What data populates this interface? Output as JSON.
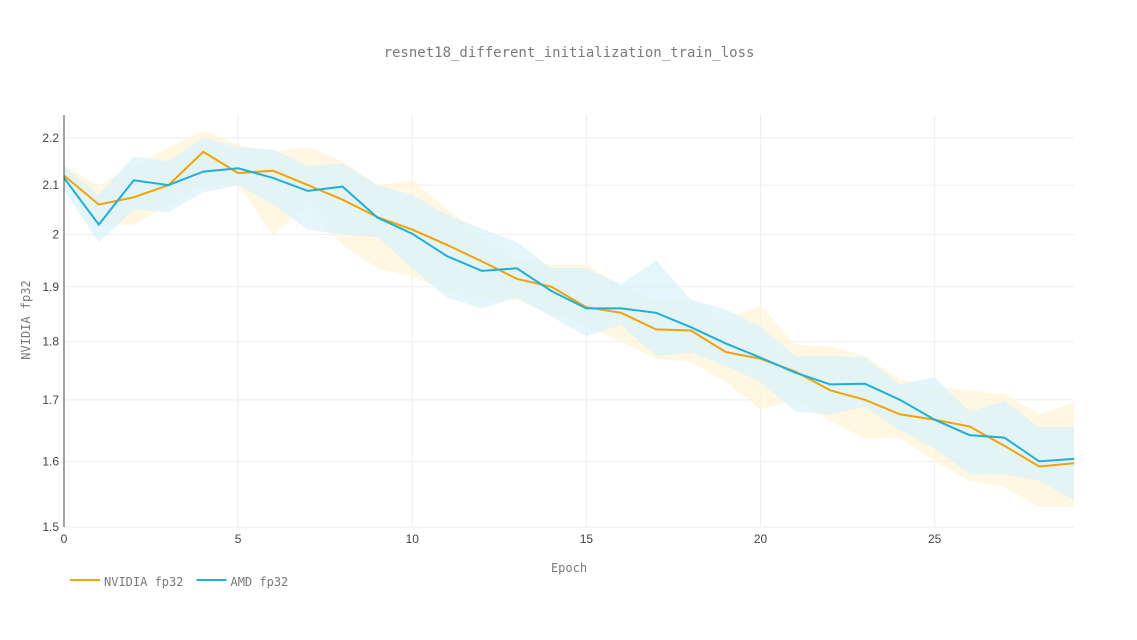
{
  "chart_data": {
    "type": "line",
    "title": "resnet18_different_initialization_train_loss",
    "xlabel": "Epoch",
    "ylabel": "NVIDIA fp32",
    "xlim": [
      0,
      29
    ],
    "ylim": [
      1.5,
      2.25
    ],
    "y_scale": "log",
    "x_ticks": [
      0,
      5,
      10,
      15,
      20,
      25
    ],
    "y_ticks": [
      1.5,
      1.6,
      1.7,
      1.8,
      1.9,
      2,
      2.1,
      2.2
    ],
    "y_tick_labels": [
      "1.5",
      "1.6",
      "1.7",
      "1.8",
      "1.9",
      "2",
      "2.1",
      "2.2"
    ],
    "x_tick_labels": [
      "0",
      "5",
      "10",
      "15",
      "20",
      "25"
    ],
    "grid": true,
    "legend_position": "bottom-left",
    "x": [
      0,
      1,
      2,
      3,
      4,
      5,
      6,
      7,
      8,
      9,
      10,
      11,
      12,
      13,
      14,
      15,
      16,
      17,
      18,
      19,
      20,
      21,
      22,
      23,
      24,
      25,
      26,
      27,
      28,
      29
    ],
    "series": [
      {
        "name": "NVIDIA fp32",
        "color": "#f0a30a",
        "band_color": "#fff3d6",
        "values": [
          2.12,
          2.06,
          2.075,
          2.1,
          2.17,
          2.125,
          2.13,
          2.1,
          2.07,
          2.035,
          2.01,
          1.98,
          1.948,
          1.915,
          1.9,
          1.862,
          1.852,
          1.822,
          1.82,
          1.782,
          1.77,
          1.748,
          1.716,
          1.7,
          1.676,
          1.667,
          1.656,
          1.625,
          1.592,
          1.597
        ],
        "upper": [
          2.14,
          2.1,
          2.14,
          2.18,
          2.215,
          2.185,
          2.17,
          2.18,
          2.15,
          2.1,
          2.11,
          2.05,
          2.0,
          1.95,
          1.942,
          1.942,
          1.9,
          1.875,
          1.878,
          1.84,
          1.865,
          1.795,
          1.792,
          1.775,
          1.735,
          1.722,
          1.716,
          1.71,
          1.676,
          1.695
        ],
        "lower": [
          2.1,
          2.02,
          2.02,
          2.06,
          2.1,
          2.1,
          2.0,
          2.06,
          1.98,
          1.935,
          1.92,
          1.89,
          1.88,
          1.876,
          1.85,
          1.83,
          1.8,
          1.77,
          1.765,
          1.73,
          1.684,
          1.7,
          1.665,
          1.636,
          1.638,
          1.6,
          1.57,
          1.56,
          1.53,
          1.53
        ]
      },
      {
        "name": "AMD fp32",
        "color": "#1fb0d8",
        "band_color": "#d9f1fb",
        "values": [
          2.115,
          2.02,
          2.11,
          2.1,
          2.128,
          2.135,
          2.115,
          2.088,
          2.097,
          2.034,
          2.002,
          1.958,
          1.93,
          1.935,
          1.892,
          1.86,
          1.86,
          1.852,
          1.826,
          1.797,
          1.772,
          1.746,
          1.726,
          1.727,
          1.7,
          1.667,
          1.642,
          1.638,
          1.6,
          1.604
        ],
        "upper": [
          2.14,
          2.08,
          2.16,
          2.15,
          2.2,
          2.18,
          2.175,
          2.14,
          2.145,
          2.1,
          2.08,
          2.04,
          2.012,
          1.985,
          1.935,
          1.935,
          1.905,
          1.95,
          1.876,
          1.858,
          1.828,
          1.775,
          1.775,
          1.772,
          1.726,
          1.738,
          1.68,
          1.698,
          1.655,
          1.655
        ],
        "lower": [
          2.09,
          1.985,
          2.05,
          2.045,
          2.085,
          2.1,
          2.06,
          2.01,
          2.0,
          1.995,
          1.935,
          1.88,
          1.86,
          1.88,
          1.845,
          1.81,
          1.83,
          1.775,
          1.78,
          1.758,
          1.73,
          1.68,
          1.676,
          1.688,
          1.65,
          1.62,
          1.58,
          1.58,
          1.57,
          1.54
        ]
      }
    ]
  }
}
